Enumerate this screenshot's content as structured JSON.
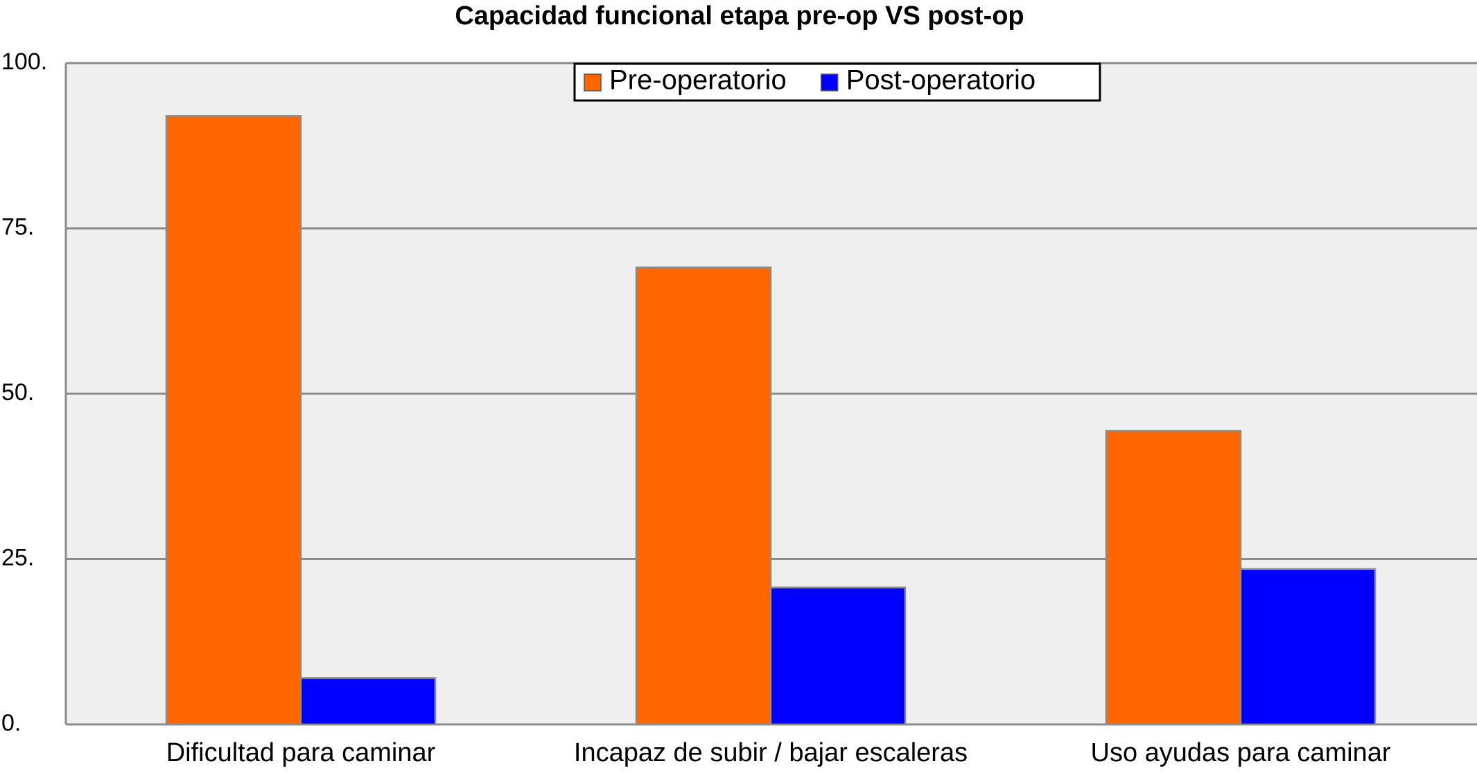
{
  "chart_data": {
    "type": "bar",
    "title": "Capacidad funcional etapa pre-op VS post-op",
    "categories": [
      "Dificultad para caminar",
      "Incapaz de subir / bajar escaleras",
      "Uso ayudas para caminar"
    ],
    "series": [
      {
        "name": "Pre-operatorio",
        "color": "#ff6600",
        "values": [
          92,
          69.1,
          44.4
        ]
      },
      {
        "name": "Post-operatorio",
        "color": "#0000ff",
        "values": [
          7,
          20.7,
          23.5
        ]
      }
    ],
    "ylim": [
      0,
      100
    ],
    "yticks": [
      {
        "value": 0,
        "label": "0."
      },
      {
        "value": 25,
        "label": "25."
      },
      {
        "value": 50,
        "label": "50."
      },
      {
        "value": 75,
        "label": "75."
      },
      {
        "value": 100,
        "label": "100."
      }
    ],
    "grid": true,
    "legend": "top"
  }
}
